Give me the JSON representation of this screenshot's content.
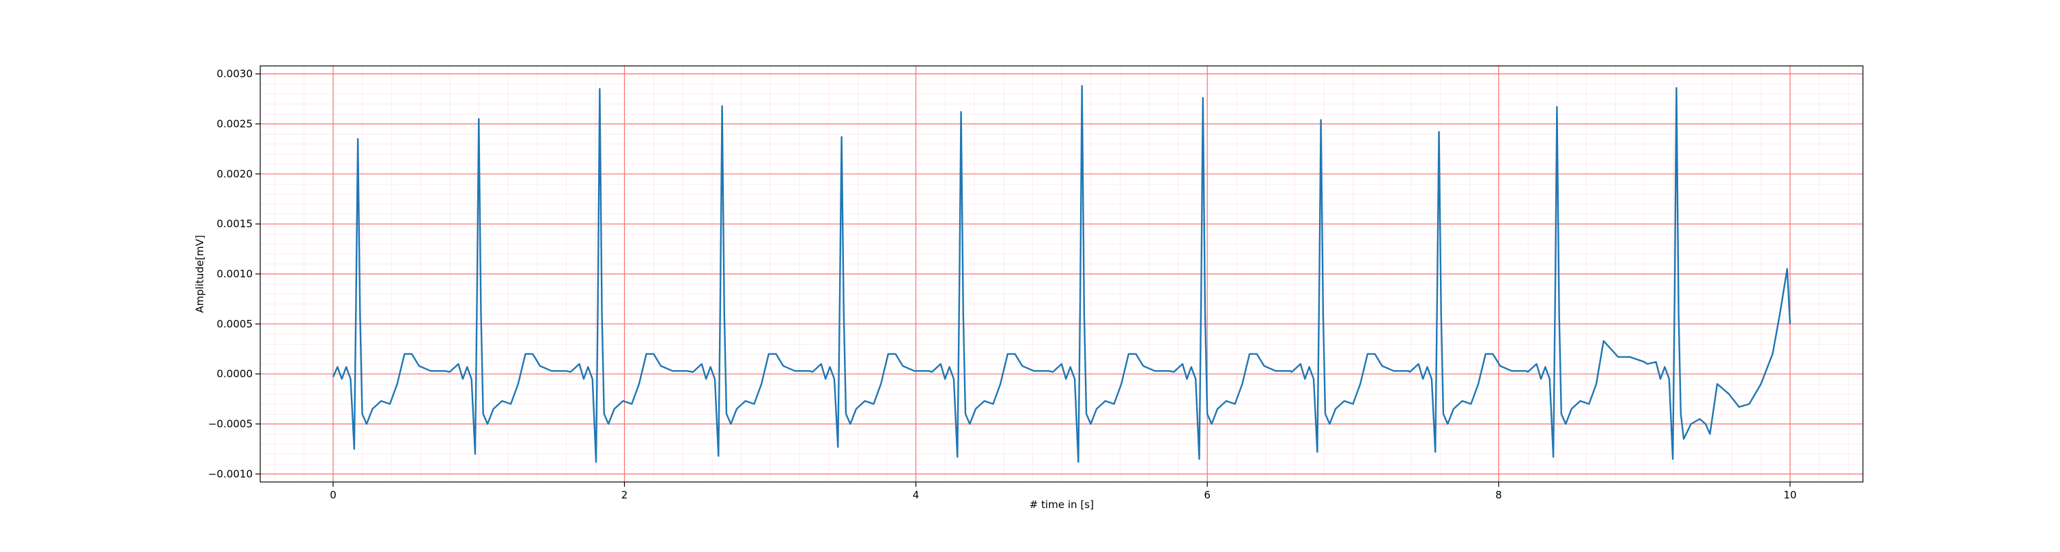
{
  "chart_data": {
    "type": "line",
    "xlabel": "# time in [s]",
    "ylabel": "Amplitude[mV]",
    "xlim": [
      -0.5,
      10.5
    ],
    "ylim": [
      -0.00108,
      0.00308
    ],
    "xticks": [
      0,
      2,
      4,
      6,
      8,
      10
    ],
    "yticks": [
      {
        "value": -0.001,
        "label": "−0.0010"
      },
      {
        "value": -0.0005,
        "label": "−0.0005"
      },
      {
        "value": 0,
        "label": "0.0000"
      },
      {
        "value": 0.0005,
        "label": "0.0005"
      },
      {
        "value": 0.001,
        "label": "0.0010"
      },
      {
        "value": 0.0015,
        "label": "0.0015"
      },
      {
        "value": 0.002,
        "label": "0.0020"
      },
      {
        "value": 0.0025,
        "label": "0.0025"
      },
      {
        "value": 0.003,
        "label": "0.0030"
      }
    ],
    "grid": true,
    "grid_color": "#ff6f6f",
    "minor_grid_color": "#ffd6e6",
    "series": [
      {
        "color": "#1f77b4",
        "x": [
          0,
          0.03,
          0.06,
          0.09,
          0.12,
          0.145,
          0.158,
          0.17,
          0.185,
          0.2,
          0.23,
          0.27,
          0.33,
          0.39,
          0.44,
          0.49,
          0.54,
          0.59,
          0.67,
          0.77,
          0.8,
          0.86,
          0.89,
          0.92,
          0.95,
          0.975,
          0.988,
          1.0,
          1.015,
          1.03,
          1.06,
          1.1,
          1.16,
          1.22,
          1.27,
          1.32,
          1.37,
          1.42,
          1.5,
          1.6,
          1.63,
          1.69,
          1.72,
          1.75,
          1.78,
          1.805,
          1.818,
          1.83,
          1.845,
          1.86,
          1.89,
          1.93,
          1.99,
          2.05,
          2.1,
          2.15,
          2.2,
          2.25,
          2.33,
          2.43,
          2.47,
          2.53,
          2.56,
          2.59,
          2.62,
          2.645,
          2.658,
          2.67,
          2.685,
          2.7,
          2.73,
          2.77,
          2.83,
          2.89,
          2.94,
          2.99,
          3.04,
          3.09,
          3.17,
          3.27,
          3.29,
          3.35,
          3.38,
          3.41,
          3.44,
          3.465,
          3.478,
          3.49,
          3.505,
          3.52,
          3.55,
          3.59,
          3.65,
          3.71,
          3.76,
          3.81,
          3.86,
          3.91,
          3.99,
          4.09,
          4.11,
          4.17,
          4.2,
          4.23,
          4.26,
          4.285,
          4.298,
          4.31,
          4.325,
          4.34,
          4.37,
          4.41,
          4.47,
          4.53,
          4.58,
          4.63,
          4.68,
          4.73,
          4.81,
          4.91,
          4.94,
          5.0,
          5.03,
          5.06,
          5.09,
          5.115,
          5.128,
          5.14,
          5.155,
          5.17,
          5.2,
          5.24,
          5.3,
          5.36,
          5.41,
          5.46,
          5.51,
          5.56,
          5.64,
          5.74,
          5.77,
          5.83,
          5.86,
          5.89,
          5.92,
          5.945,
          5.958,
          5.97,
          5.985,
          6.0,
          6.03,
          6.07,
          6.13,
          6.19,
          6.24,
          6.29,
          6.34,
          6.39,
          6.47,
          6.57,
          6.58,
          6.64,
          6.67,
          6.7,
          6.73,
          6.755,
          6.768,
          6.78,
          6.795,
          6.81,
          6.84,
          6.88,
          6.94,
          7.0,
          7.05,
          7.1,
          7.15,
          7.2,
          7.28,
          7.38,
          7.39,
          7.45,
          7.48,
          7.51,
          7.54,
          7.565,
          7.578,
          7.59,
          7.605,
          7.62,
          7.65,
          7.69,
          7.75,
          7.81,
          7.86,
          7.91,
          7.96,
          8.01,
          8.09,
          8.19,
          8.2,
          8.26,
          8.29,
          8.32,
          8.35,
          8.375,
          8.388,
          8.4,
          8.415,
          8.43,
          8.46,
          8.5,
          8.56,
          8.62,
          8.67,
          8.72,
          8.77,
          8.82,
          8.9,
          9.0,
          9.02,
          9.08,
          9.11,
          9.14,
          9.17,
          9.195,
          9.208,
          9.22,
          9.235,
          9.25,
          9.27,
          9.32,
          9.38,
          9.42,
          9.45,
          9.5,
          9.58,
          9.65,
          9.72,
          9.8,
          9.88,
          9.93,
          9.98,
          10.0
        ],
        "values": [
          -3e-05,
          7e-05,
          -5e-05,
          7e-05,
          -5e-05,
          -0.00075,
          0.0008,
          0.00235,
          0.0006,
          -0.0004,
          -0.0005,
          -0.00035,
          -0.00027,
          -0.0003,
          -0.0001,
          0.0002,
          0.0002,
          8e-05,
          3e-05,
          3e-05,
          2e-05,
          0.0001,
          -5e-05,
          7e-05,
          -5e-05,
          -0.0008,
          0.0008,
          0.00255,
          0.0006,
          -0.0004,
          -0.0005,
          -0.00035,
          -0.00027,
          -0.0003,
          -0.0001,
          0.0002,
          0.0002,
          8e-05,
          3e-05,
          3e-05,
          2e-05,
          0.0001,
          -5e-05,
          7e-05,
          -5e-05,
          -0.00088,
          0.0008,
          0.00285,
          0.0006,
          -0.0004,
          -0.0005,
          -0.00035,
          -0.00027,
          -0.0003,
          -0.0001,
          0.0002,
          0.0002,
          8e-05,
          3e-05,
          3e-05,
          2e-05,
          0.0001,
          -5e-05,
          7e-05,
          -5e-05,
          -0.00082,
          0.0008,
          0.00268,
          0.0006,
          -0.0004,
          -0.0005,
          -0.00035,
          -0.00027,
          -0.0003,
          -0.0001,
          0.0002,
          0.0002,
          8e-05,
          3e-05,
          3e-05,
          2e-05,
          0.0001,
          -5e-05,
          7e-05,
          -5e-05,
          -0.00073,
          0.0008,
          0.00237,
          0.0006,
          -0.0004,
          -0.0005,
          -0.00035,
          -0.00027,
          -0.0003,
          -0.0001,
          0.0002,
          0.0002,
          8e-05,
          3e-05,
          3e-05,
          2e-05,
          0.0001,
          -5e-05,
          7e-05,
          -5e-05,
          -0.00083,
          0.0008,
          0.00262,
          0.0006,
          -0.0004,
          -0.0005,
          -0.00035,
          -0.00027,
          -0.0003,
          -0.0001,
          0.0002,
          0.0002,
          8e-05,
          3e-05,
          3e-05,
          2e-05,
          0.0001,
          -5e-05,
          7e-05,
          -5e-05,
          -0.00088,
          0.0008,
          0.00288,
          0.0006,
          -0.0004,
          -0.0005,
          -0.00035,
          -0.00027,
          -0.0003,
          -0.0001,
          0.0002,
          0.0002,
          8e-05,
          3e-05,
          3e-05,
          2e-05,
          0.0001,
          -5e-05,
          7e-05,
          -5e-05,
          -0.00085,
          0.0008,
          0.00276,
          0.0006,
          -0.0004,
          -0.0005,
          -0.00035,
          -0.00027,
          -0.0003,
          -0.0001,
          0.0002,
          0.0002,
          8e-05,
          3e-05,
          3e-05,
          2e-05,
          0.0001,
          -5e-05,
          7e-05,
          -5e-05,
          -0.00078,
          0.0008,
          0.00254,
          0.0006,
          -0.0004,
          -0.0005,
          -0.00035,
          -0.00027,
          -0.0003,
          -0.0001,
          0.0002,
          0.0002,
          8e-05,
          3e-05,
          3e-05,
          2e-05,
          0.0001,
          -5e-05,
          7e-05,
          -5e-05,
          -0.00078,
          0.0008,
          0.00242,
          0.0006,
          -0.0004,
          -0.0005,
          -0.00035,
          -0.00027,
          -0.0003,
          -0.0001,
          0.0002,
          0.0002,
          8e-05,
          3e-05,
          3e-05,
          2e-05,
          0.0001,
          -5e-05,
          7e-05,
          -5e-05,
          -0.00083,
          0.0008,
          0.00267,
          0.0006,
          -0.0004,
          -0.0005,
          -0.00035,
          -0.00027,
          -0.0003,
          -0.0001,
          0.00033,
          0.00025,
          0.00017,
          0.00017,
          0.00012,
          0.0001,
          0.00012,
          -5e-05,
          7e-05,
          -5e-05,
          -0.00085,
          0.0008,
          0.00286,
          0.0006,
          -0.0004,
          -0.00065,
          -0.0005,
          -0.00045,
          -0.0005,
          -0.0006,
          -0.0001,
          -0.0002,
          -0.00033,
          -0.0003,
          -0.0001,
          0.0002,
          0.0006,
          0.00105,
          0.0005
        ]
      }
    ]
  }
}
